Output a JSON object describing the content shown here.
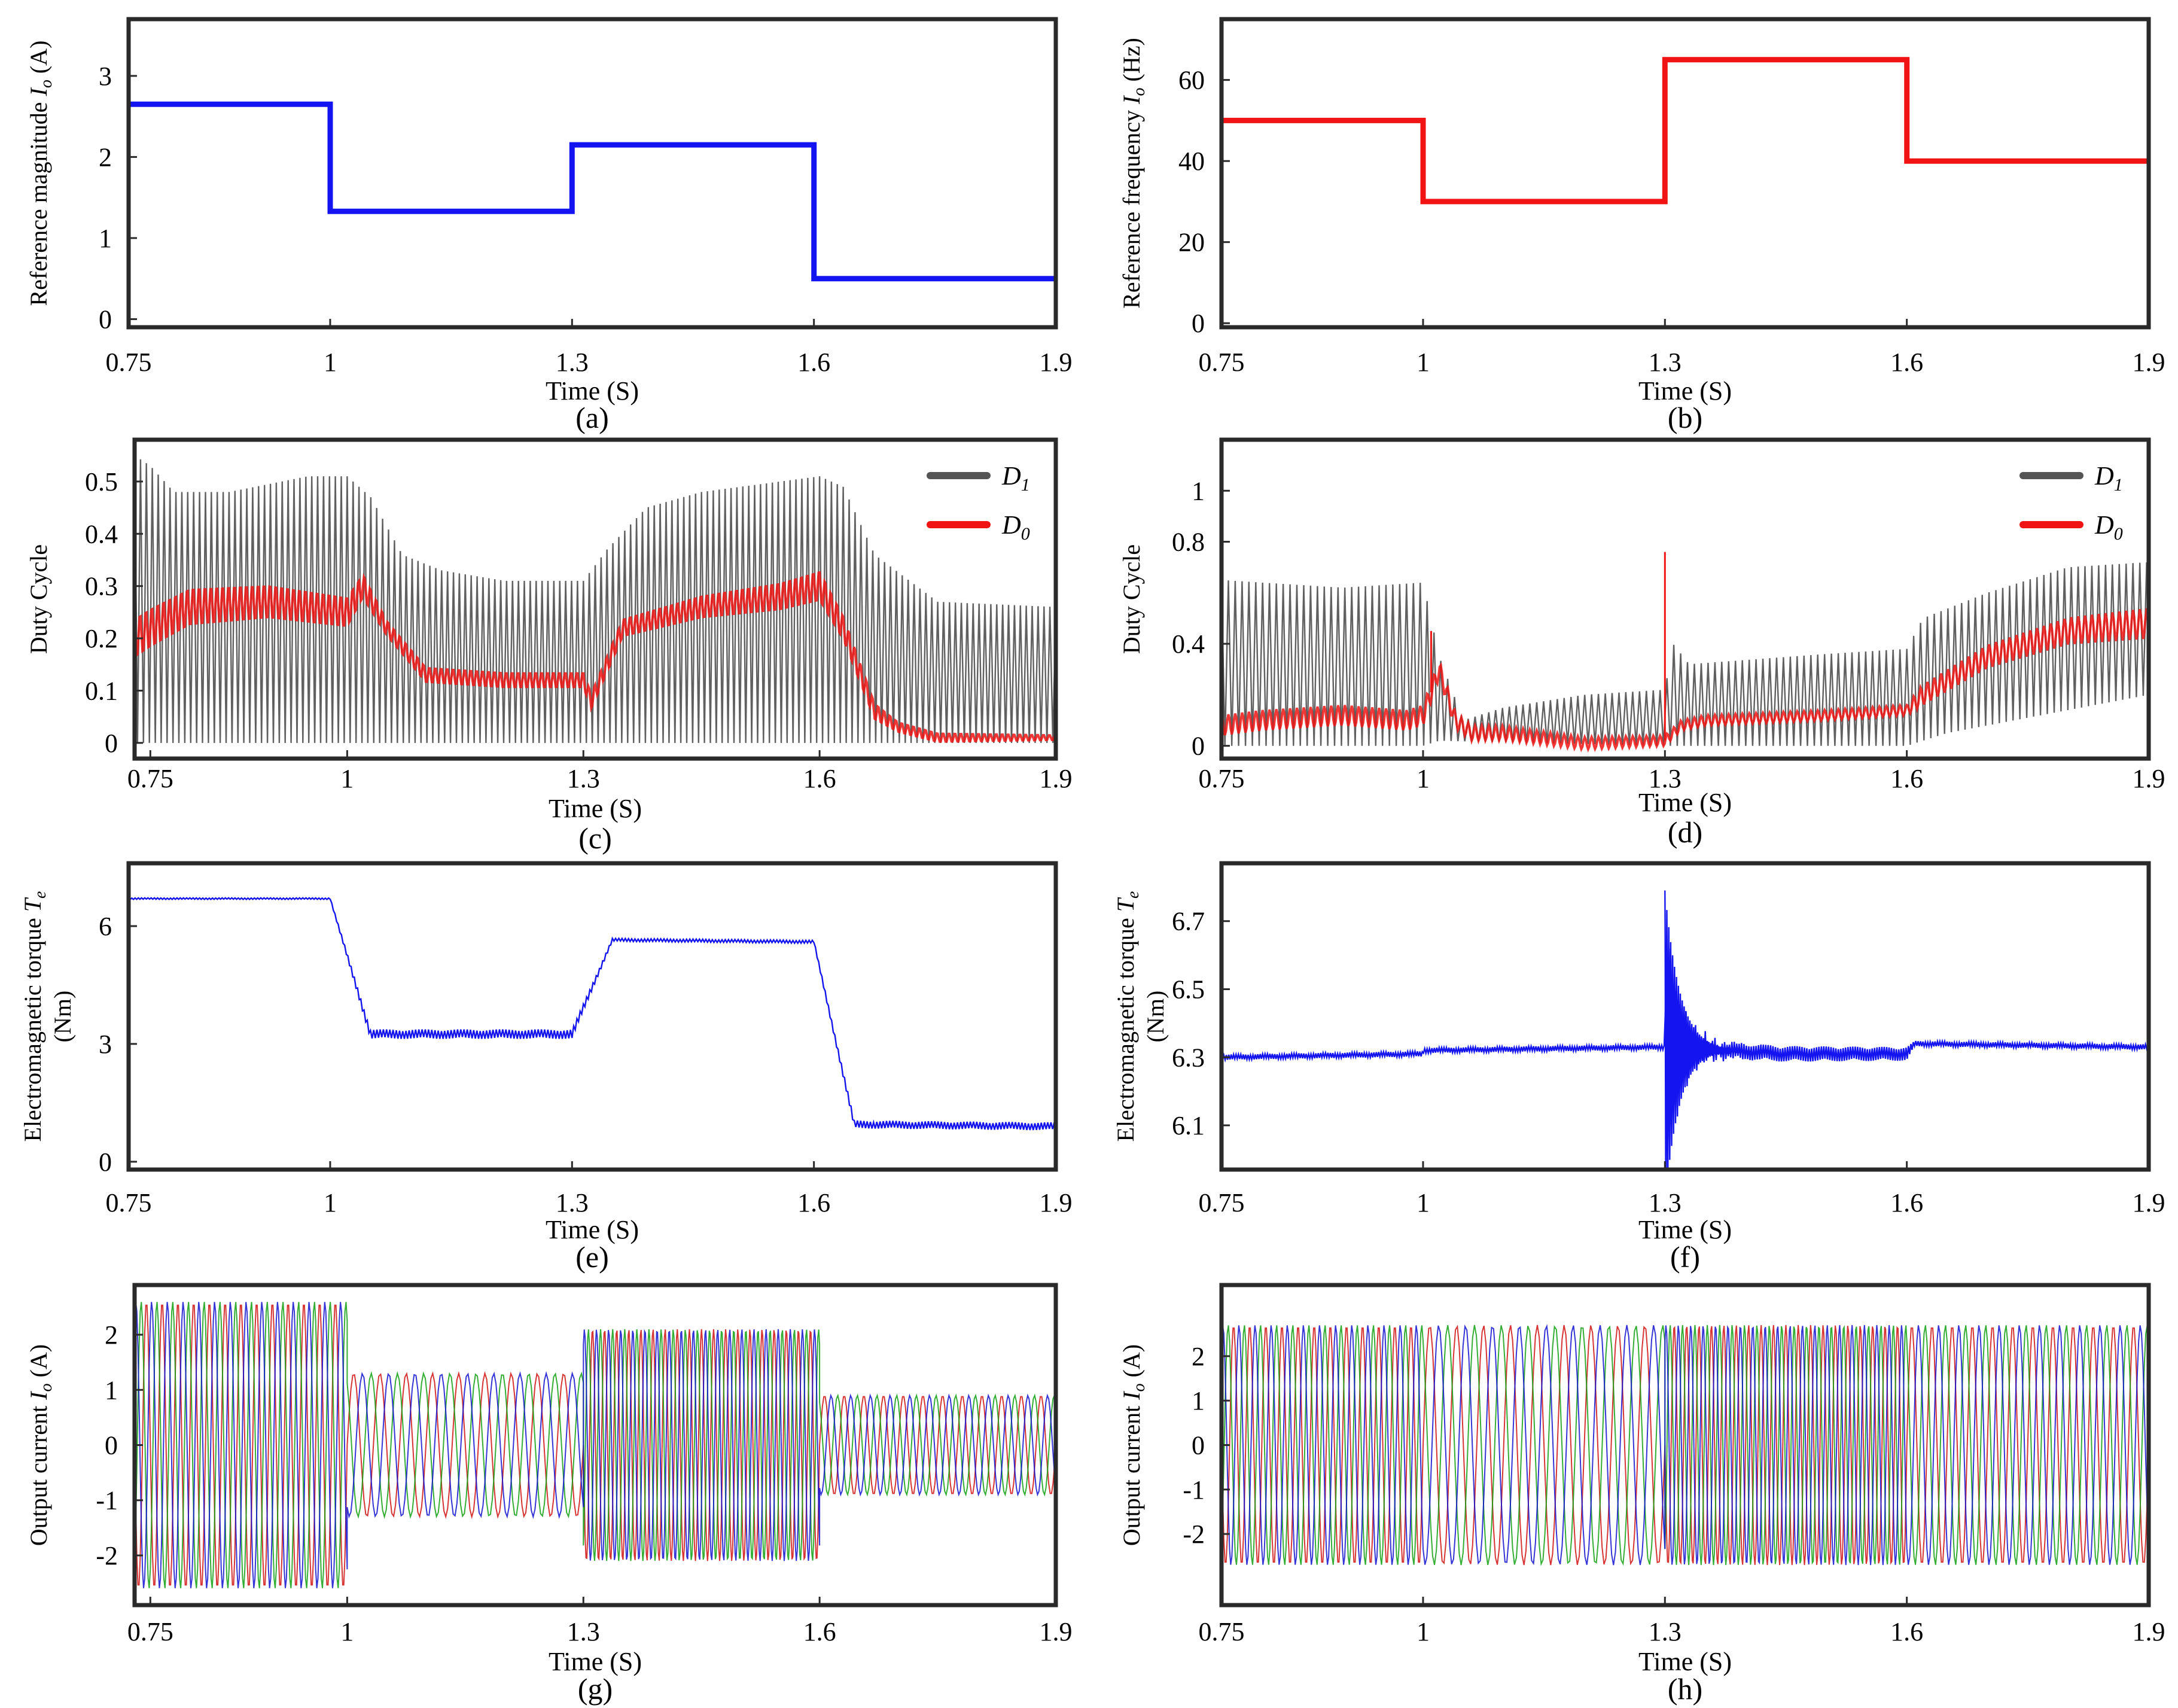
{
  "figure_title": "",
  "chart_data": [
    {
      "id": "a",
      "type": "line",
      "panel_label": "(a)",
      "xlabel": "Time (S)",
      "ylabel": "Reference magnitude I_o (A)",
      "ylabel_main": "Reference magnitude ",
      "ylabel_sym": "I",
      "ylabel_sub": "o",
      "ylabel_tail": " (A)",
      "xlim": [
        0.75,
        1.9
      ],
      "ylim": [
        -0.1,
        3.7
      ],
      "xticks": [
        0.75,
        1,
        1.3,
        1.6,
        1.9
      ],
      "xtick_labels": [
        "0.75",
        "1",
        "1.3",
        "1.6",
        "1.9"
      ],
      "yticks": [
        0,
        1,
        2,
        3
      ],
      "ytick_labels": [
        "0",
        "1",
        "2",
        "3"
      ],
      "series": [
        {
          "name": "magnitude",
          "color": "#1414f0",
          "style": "step",
          "x": [
            0.75,
            1.0,
            1.0,
            1.3,
            1.3,
            1.6,
            1.6,
            1.9
          ],
          "y": [
            2.65,
            2.65,
            1.33,
            1.33,
            2.15,
            2.15,
            0.5,
            0.5
          ]
        }
      ]
    },
    {
      "id": "b",
      "type": "line",
      "panel_label": "(b)",
      "xlabel": "Time (S)",
      "ylabel": "Reference frequency I_o (Hz)",
      "ylabel_main": "Reference frequency ",
      "ylabel_sym": "I",
      "ylabel_sub": "o",
      "ylabel_tail": " (Hz)",
      "xlim": [
        0.75,
        1.9
      ],
      "ylim": [
        -1,
        75
      ],
      "xticks": [
        0.75,
        1,
        1.3,
        1.6,
        1.9
      ],
      "xtick_labels": [
        "0.75",
        "1",
        "1.3",
        "1.6",
        "1.9"
      ],
      "yticks": [
        0,
        20,
        40,
        60
      ],
      "ytick_labels": [
        "0",
        "20",
        "40",
        "60"
      ],
      "series": [
        {
          "name": "frequency",
          "color": "#f01414",
          "style": "step",
          "x": [
            0.75,
            1.0,
            1.0,
            1.3,
            1.3,
            1.6,
            1.6,
            1.9
          ],
          "y": [
            50,
            50,
            30,
            30,
            65,
            65,
            40,
            40
          ]
        }
      ]
    },
    {
      "id": "c",
      "type": "line",
      "panel_label": "(c)",
      "xlabel": "Time (S)",
      "ylabel": "Duty Cycle",
      "xlim": [
        0.73,
        1.9
      ],
      "ylim": [
        -0.03,
        0.58
      ],
      "xticks": [
        0.75,
        1,
        1.3,
        1.6,
        1.9
      ],
      "xtick_labels": [
        "0.75",
        "1",
        "1.3",
        "1.6",
        "1.9"
      ],
      "yticks": [
        0,
        0.1,
        0.2,
        0.3,
        0.4,
        0.5
      ],
      "ytick_labels": [
        "0",
        "0.1",
        "0.2",
        "0.3",
        "0.4",
        "0.5"
      ],
      "legend": [
        {
          "name": "D",
          "sub": "1",
          "color": "#555555"
        },
        {
          "name": "D",
          "sub": "0",
          "color": "#f01414"
        }
      ],
      "series": [
        {
          "name": "D1",
          "color": "#444444",
          "style": "oscillation",
          "period": 0.0075,
          "upper": {
            "x": [
              0.73,
              0.75,
              0.78,
              0.85,
              0.95,
              1.0,
              1.03,
              1.07,
              1.12,
              1.2,
              1.3,
              1.33,
              1.38,
              1.45,
              1.55,
              1.6,
              1.63,
              1.67,
              1.75,
              1.9
            ],
            "y": [
              0.55,
              0.53,
              0.48,
              0.48,
              0.51,
              0.51,
              0.47,
              0.36,
              0.33,
              0.31,
              0.31,
              0.37,
              0.45,
              0.48,
              0.5,
              0.51,
              0.49,
              0.36,
              0.27,
              0.26
            ]
          },
          "lower": {
            "x": [
              0.73,
              1.9
            ],
            "y": [
              0.0,
              0.0
            ]
          }
        },
        {
          "name": "D0",
          "color": "#f01414",
          "style": "band",
          "period": 0.0075,
          "mid": {
            "x": [
              0.73,
              0.75,
              0.8,
              0.9,
              1.0,
              1.02,
              1.05,
              1.1,
              1.2,
              1.3,
              1.31,
              1.35,
              1.45,
              1.55,
              1.6,
              1.63,
              1.67,
              1.7,
              1.75,
              1.9
            ],
            "y": [
              0.2,
              0.22,
              0.26,
              0.27,
              0.25,
              0.3,
              0.22,
              0.13,
              0.12,
              0.12,
              0.08,
              0.22,
              0.26,
              0.28,
              0.3,
              0.22,
              0.06,
              0.03,
              0.01,
              0.01
            ]
          },
          "amp": {
            "x": [
              0.73,
              1.0,
              1.05,
              1.3,
              1.6,
              1.7,
              1.9
            ],
            "y": [
              0.04,
              0.03,
              0.015,
              0.015,
              0.03,
              0.01,
              0.005
            ]
          }
        }
      ]
    },
    {
      "id": "d",
      "type": "line",
      "panel_label": "(d)",
      "xlabel": "Time (S)",
      "ylabel": "Duty Cycle",
      "xlim": [
        0.75,
        1.9
      ],
      "ylim": [
        -0.05,
        1.2
      ],
      "xticks": [
        0.75,
        1,
        1.3,
        1.6,
        1.9
      ],
      "xtick_labels": [
        "0.75",
        "1",
        "1.3",
        "1.6",
        "1.9"
      ],
      "yticks": [
        0,
        0.4,
        0.8,
        1
      ],
      "ytick_labels": [
        "0",
        "0.4",
        "0.8",
        "1"
      ],
      "legend": [
        {
          "name": "D",
          "sub": "1",
          "color": "#555555"
        },
        {
          "name": "D",
          "sub": "0",
          "color": "#f01414"
        }
      ],
      "series": [
        {
          "name": "D1",
          "color": "#444444",
          "style": "oscillation",
          "period": 0.0085,
          "upper": {
            "x": [
              0.75,
              0.9,
              1.0,
              1.02,
              1.05,
              1.1,
              1.2,
              1.3,
              1.31,
              1.33,
              1.5,
              1.6,
              1.62,
              1.7,
              1.8,
              1.9
            ],
            "y": [
              0.65,
              0.62,
              0.64,
              0.35,
              0.1,
              0.15,
              0.2,
              0.22,
              0.4,
              0.32,
              0.36,
              0.38,
              0.5,
              0.6,
              0.7,
              0.72
            ]
          },
          "lower": {
            "x": [
              0.75,
              1.0,
              1.02,
              1.3,
              1.6,
              1.65,
              1.9
            ],
            "y": [
              0.0,
              0.0,
              0.02,
              0.0,
              0.0,
              0.05,
              0.2
            ]
          }
        },
        {
          "name": "D0",
          "color": "#f01414",
          "style": "band",
          "period": 0.0085,
          "mid": {
            "x": [
              0.75,
              0.8,
              0.9,
              0.98,
              1.0,
              1.02,
              1.04,
              1.06,
              1.1,
              1.2,
              1.3,
              1.32,
              1.35,
              1.5,
              1.6,
              1.62,
              1.7,
              1.8,
              1.9
            ],
            "y": [
              0.08,
              0.1,
              0.12,
              0.1,
              0.12,
              0.3,
              0.1,
              0.05,
              0.05,
              0.01,
              0.02,
              0.08,
              0.1,
              0.12,
              0.14,
              0.2,
              0.35,
              0.45,
              0.48
            ]
          },
          "amp": {
            "x": [
              0.75,
              1.0,
              1.05,
              1.3,
              1.6,
              1.62,
              1.9
            ],
            "y": [
              0.04,
              0.04,
              0.03,
              0.02,
              0.02,
              0.04,
              0.06
            ]
          },
          "spikes": [
            {
              "x": 1.3,
              "y": 0.76
            },
            {
              "x": 1.01,
              "y": 0.45
            }
          ]
        }
      ]
    },
    {
      "id": "e",
      "type": "line",
      "panel_label": "(e)",
      "xlabel": "Time (S)",
      "ylabel": "Electromagnetic torque T_e (Nm)",
      "ylabel_main": "Electromagnetic torque  ",
      "ylabel_sym": "T",
      "ylabel_sub": "e",
      "ylabel_line2": "(Nm)",
      "xlim": [
        0.75,
        1.9
      ],
      "ylim": [
        -0.2,
        7.6
      ],
      "xticks": [
        0.75,
        1,
        1.3,
        1.6,
        1.9
      ],
      "xtick_labels": [
        "0.75",
        "1",
        "1.3",
        "1.6",
        "1.9"
      ],
      "yticks": [
        0,
        3,
        6
      ],
      "ytick_labels": [
        "0",
        "3",
        "6"
      ],
      "series": [
        {
          "name": "Te",
          "color": "#1414f0",
          "style": "noisy",
          "period": 0.004,
          "x": [
            0.75,
            1.0,
            1.05,
            1.3,
            1.35,
            1.6,
            1.65,
            1.9
          ],
          "y": [
            6.7,
            6.7,
            3.25,
            3.25,
            5.65,
            5.6,
            0.95,
            0.9
          ],
          "noise": {
            "x": [
              0.75,
              1.0,
              1.05,
              1.3,
              1.35,
              1.6,
              1.65,
              1.9
            ],
            "y": [
              0.02,
              0.02,
              0.12,
              0.12,
              0.04,
              0.04,
              0.1,
              0.1
            ]
          }
        }
      ]
    },
    {
      "id": "f",
      "type": "line",
      "panel_label": "(f)",
      "xlabel": "Time (S)",
      "ylabel": "Electromagnetic torque T_e (Nm)",
      "ylabel_main": "Electromagnetic torque  ",
      "ylabel_sym": "T",
      "ylabel_sub": "e",
      "ylabel_line2": "(Nm)",
      "xlim": [
        0.75,
        1.9
      ],
      "ylim": [
        5.97,
        6.87
      ],
      "xticks": [
        0.75,
        1,
        1.3,
        1.6,
        1.9
      ],
      "xtick_labels": [
        "0.75",
        "1",
        "1.3",
        "1.6",
        "1.9"
      ],
      "yticks": [
        6.1,
        6.3,
        6.5,
        6.7
      ],
      "ytick_labels": [
        "6.1",
        "6.3",
        "6.5",
        "6.7"
      ],
      "series": [
        {
          "name": "Te",
          "color": "#1414f0",
          "style": "noisy",
          "period": 0.003,
          "x": [
            0.75,
            1.0,
            1.0,
            1.3,
            1.3,
            1.45,
            1.6,
            1.61,
            1.9
          ],
          "y": [
            6.3,
            6.31,
            6.32,
            6.33,
            6.33,
            6.31,
            6.31,
            6.34,
            6.33
          ],
          "noise": {
            "x": [
              0.75,
              1.3,
              1.35,
              1.6,
              1.61,
              1.9
            ],
            "y": [
              0.008,
              0.008,
              0.025,
              0.02,
              0.008,
              0.008
            ]
          },
          "transient": {
            "x0": 1.3,
            "amp": 0.46,
            "decay": 0.018,
            "freq": 420
          }
        }
      ]
    },
    {
      "id": "g",
      "type": "line",
      "panel_label": "(g)",
      "xlabel": "Time (S)",
      "ylabel": "Output current I_o (A)",
      "ylabel_main": "Output current ",
      "ylabel_sym": "I",
      "ylabel_sub": "o",
      "ylabel_tail": " (A)",
      "xlim": [
        0.73,
        1.9
      ],
      "ylim": [
        -2.9,
        2.9
      ],
      "xticks": [
        0.75,
        1,
        1.3,
        1.6,
        1.9
      ],
      "xtick_labels": [
        "0.75",
        "1",
        "1.3",
        "1.6",
        "1.9"
      ],
      "yticks": [
        -2,
        -1,
        0,
        1,
        2
      ],
      "ytick_labels": [
        "-2",
        "-1",
        "0",
        "1",
        "2"
      ],
      "series": [
        {
          "name": "ia",
          "color": "#d01010",
          "style": "sine3",
          "phase": 0
        },
        {
          "name": "ib",
          "color": "#10a010",
          "style": "sine3",
          "phase": 2.0944
        },
        {
          "name": "ic",
          "color": "#1010d0",
          "style": "sine3",
          "phase": 4.1888
        }
      ],
      "segments": [
        {
          "t0": 0.73,
          "t1": 1.0,
          "amp": 2.6,
          "freq": 50
        },
        {
          "t0": 1.0,
          "t1": 1.3,
          "amp": 1.3,
          "freq": 30
        },
        {
          "t0": 1.3,
          "t1": 1.6,
          "amp": 2.1,
          "freq": 65
        },
        {
          "t0": 1.6,
          "t1": 1.9,
          "amp": 0.9,
          "freq": 40
        }
      ]
    },
    {
      "id": "h",
      "type": "line",
      "panel_label": "(h)",
      "xlabel": "Time (S)",
      "ylabel": "Output current I_o (A)",
      "ylabel_main": "Output current ",
      "ylabel_sym": "I",
      "ylabel_sub": "o",
      "ylabel_tail": " (A)",
      "xlim": [
        0.75,
        1.9
      ],
      "ylim": [
        -3.6,
        3.6
      ],
      "xticks": [
        0.75,
        1,
        1.3,
        1.6,
        1.9
      ],
      "xtick_labels": [
        "0.75",
        "1",
        "1.3",
        "1.6",
        "1.9"
      ],
      "yticks": [
        -2,
        -1,
        0,
        1,
        2
      ],
      "ytick_labels": [
        "-2",
        "-1",
        "0",
        "1",
        "2"
      ],
      "series": [
        {
          "name": "ia",
          "color": "#d01010",
          "style": "sine3",
          "phase": 0
        },
        {
          "name": "ib",
          "color": "#10a010",
          "style": "sine3",
          "phase": 2.0944
        },
        {
          "name": "ic",
          "color": "#1010d0",
          "style": "sine3",
          "phase": 4.1888
        }
      ],
      "segments": [
        {
          "t0": 0.75,
          "t1": 1.0,
          "amp": 2.7,
          "freq": 50
        },
        {
          "t0": 1.0,
          "t1": 1.3,
          "amp": 2.7,
          "freq": 30
        },
        {
          "t0": 1.3,
          "t1": 1.6,
          "amp": 2.7,
          "freq": 65
        },
        {
          "t0": 1.6,
          "t1": 1.9,
          "amp": 2.7,
          "freq": 40
        }
      ]
    }
  ]
}
